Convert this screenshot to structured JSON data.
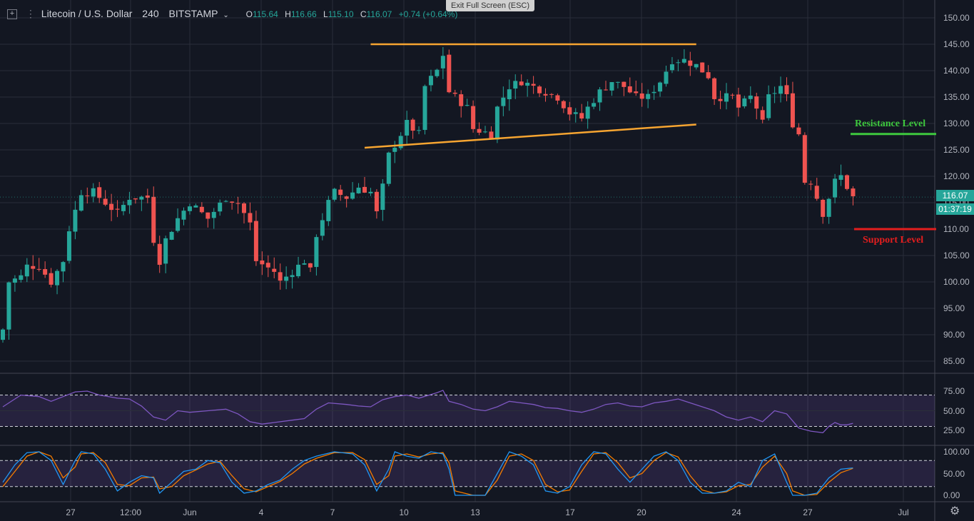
{
  "header": {
    "symbol": "Litecoin / U.S. Dollar",
    "interval": "240",
    "exchange": "BITSTAMP",
    "ohlc": {
      "o_label": "O",
      "o": "115.64",
      "h_label": "H",
      "h": "116.66",
      "l_label": "L",
      "l": "115.10",
      "c_label": "C",
      "c": "116.07",
      "change": "+0.74 (+0.64%)"
    }
  },
  "fullscreen_button": "Exit Full Screen (ESC)",
  "price_axis": {
    "labels": [
      "150.00",
      "145.00",
      "140.00",
      "135.00",
      "130.00",
      "125.00",
      "120.00",
      "115.00",
      "110.00",
      "105.00",
      "100.00",
      "95.00",
      "90.00",
      "85.00"
    ],
    "current_price": "116.07",
    "countdown": "01:37:19"
  },
  "rsi_axis": {
    "labels": [
      "75.00",
      "50.00",
      "25.00"
    ]
  },
  "stoch_axis": {
    "labels": [
      "100.00",
      "50.00",
      "0.00"
    ]
  },
  "time_axis": {
    "labels": [
      "27",
      "12:00",
      "Jun",
      "4",
      "7",
      "10",
      "13",
      "17",
      "20",
      "24",
      "27",
      "Jul"
    ]
  },
  "annotations": {
    "resistance": "Resistance Level",
    "support": "Support Level"
  },
  "colors": {
    "up": "#26a69a",
    "down": "#ef5350",
    "trendline": "#f7a531",
    "resistance": "#3ec93e",
    "support": "#e41e1e",
    "rsi": "#7e57c2"
  },
  "icons": {
    "layout": "square-grid-icon",
    "settings": "gear-icon"
  },
  "chart_data": {
    "type": "candlestick",
    "title": "Litecoin / U.S. Dollar 240 BITSTAMP",
    "ylim": [
      83,
      152
    ],
    "x_ticks": [
      "27",
      "12:00",
      "Jun",
      "4",
      "7",
      "10",
      "13",
      "17",
      "20",
      "24",
      "27",
      "Jul"
    ],
    "close_path": [
      [
        0,
        91
      ],
      [
        1,
        100
      ],
      [
        3,
        101
      ],
      [
        4,
        103
      ],
      [
        6,
        103
      ],
      [
        8,
        100
      ],
      [
        10,
        104
      ],
      [
        11,
        110
      ],
      [
        13,
        117
      ],
      [
        15,
        117
      ],
      [
        17,
        115
      ],
      [
        19,
        113
      ],
      [
        21,
        116
      ],
      [
        24,
        116
      ],
      [
        25,
        108
      ],
      [
        26,
        104
      ],
      [
        27,
        108
      ],
      [
        29,
        112
      ],
      [
        31,
        115
      ],
      [
        34,
        112
      ],
      [
        37,
        116
      ],
      [
        39,
        115
      ],
      [
        41,
        111
      ],
      [
        42,
        104
      ],
      [
        45,
        102
      ],
      [
        46,
        100
      ],
      [
        48,
        102
      ],
      [
        50,
        104
      ],
      [
        51,
        102
      ],
      [
        52,
        109
      ],
      [
        54,
        115
      ],
      [
        55,
        117
      ],
      [
        57,
        116
      ],
      [
        59,
        118
      ],
      [
        61,
        117
      ],
      [
        62,
        113
      ],
      [
        63,
        118
      ],
      [
        64,
        124
      ],
      [
        66,
        128
      ],
      [
        67,
        130
      ],
      [
        69,
        128
      ],
      [
        70,
        137
      ],
      [
        72,
        140
      ],
      [
        73,
        143
      ],
      [
        74,
        136
      ],
      [
        76,
        134
      ],
      [
        77,
        133
      ],
      [
        78,
        129
      ],
      [
        81,
        128
      ],
      [
        82,
        133
      ],
      [
        84,
        137
      ],
      [
        86,
        138
      ],
      [
        88,
        137
      ],
      [
        90,
        136
      ],
      [
        92,
        135
      ],
      [
        94,
        132
      ],
      [
        96,
        131
      ],
      [
        97,
        133
      ],
      [
        99,
        136
      ],
      [
        101,
        138
      ],
      [
        103,
        137
      ],
      [
        105,
        135
      ],
      [
        107,
        135
      ],
      [
        109,
        138
      ],
      [
        111,
        142
      ],
      [
        113,
        142
      ],
      [
        115,
        141
      ],
      [
        117,
        139
      ],
      [
        118,
        135
      ],
      [
        121,
        135
      ],
      [
        122,
        133
      ],
      [
        124,
        135
      ],
      [
        125,
        133
      ],
      [
        126,
        130
      ],
      [
        127,
        135
      ],
      [
        129,
        137
      ],
      [
        130,
        135
      ],
      [
        131,
        130
      ],
      [
        132,
        128
      ],
      [
        133,
        119
      ],
      [
        134,
        119
      ],
      [
        136,
        113
      ],
      [
        137,
        116
      ],
      [
        138,
        119
      ],
      [
        139,
        120
      ],
      [
        140,
        118
      ],
      [
        141,
        116
      ]
    ],
    "rsi_path": [
      [
        0,
        55
      ],
      [
        3,
        70
      ],
      [
        6,
        68
      ],
      [
        8,
        62
      ],
      [
        10,
        68
      ],
      [
        12,
        74
      ],
      [
        14,
        75
      ],
      [
        16,
        70
      ],
      [
        19,
        66
      ],
      [
        21,
        65
      ],
      [
        23,
        56
      ],
      [
        25,
        42
      ],
      [
        27,
        38
      ],
      [
        29,
        50
      ],
      [
        31,
        48
      ],
      [
        34,
        50
      ],
      [
        37,
        52
      ],
      [
        39,
        46
      ],
      [
        41,
        36
      ],
      [
        43,
        33
      ],
      [
        45,
        35
      ],
      [
        48,
        38
      ],
      [
        50,
        40
      ],
      [
        52,
        52
      ],
      [
        54,
        60
      ],
      [
        57,
        58
      ],
      [
        59,
        56
      ],
      [
        61,
        55
      ],
      [
        63,
        64
      ],
      [
        65,
        68
      ],
      [
        67,
        70
      ],
      [
        69,
        66
      ],
      [
        72,
        73
      ],
      [
        73,
        76
      ],
      [
        74,
        62
      ],
      [
        76,
        58
      ],
      [
        78,
        52
      ],
      [
        80,
        50
      ],
      [
        82,
        55
      ],
      [
        84,
        62
      ],
      [
        86,
        60
      ],
      [
        88,
        58
      ],
      [
        90,
        54
      ],
      [
        92,
        53
      ],
      [
        94,
        50
      ],
      [
        96,
        48
      ],
      [
        98,
        52
      ],
      [
        100,
        58
      ],
      [
        102,
        60
      ],
      [
        104,
        56
      ],
      [
        106,
        55
      ],
      [
        108,
        60
      ],
      [
        110,
        62
      ],
      [
        112,
        65
      ],
      [
        114,
        60
      ],
      [
        116,
        55
      ],
      [
        118,
        50
      ],
      [
        120,
        42
      ],
      [
        122,
        38
      ],
      [
        124,
        42
      ],
      [
        126,
        36
      ],
      [
        128,
        50
      ],
      [
        130,
        46
      ],
      [
        132,
        28
      ],
      [
        134,
        24
      ],
      [
        136,
        22
      ],
      [
        137,
        30
      ],
      [
        138,
        35
      ],
      [
        139,
        32
      ],
      [
        140,
        32
      ],
      [
        141,
        34
      ]
    ],
    "rsi_band": [
      30,
      70
    ],
    "stoch_k": [
      [
        0,
        30
      ],
      [
        2,
        70
      ],
      [
        4,
        98
      ],
      [
        6,
        100
      ],
      [
        8,
        80
      ],
      [
        10,
        25
      ],
      [
        12,
        80
      ],
      [
        13,
        100
      ],
      [
        15,
        95
      ],
      [
        17,
        60
      ],
      [
        19,
        10
      ],
      [
        21,
        30
      ],
      [
        23,
        45
      ],
      [
        25,
        40
      ],
      [
        26,
        5
      ],
      [
        28,
        30
      ],
      [
        30,
        55
      ],
      [
        32,
        60
      ],
      [
        34,
        80
      ],
      [
        36,
        75
      ],
      [
        38,
        30
      ],
      [
        40,
        5
      ],
      [
        42,
        10
      ],
      [
        44,
        25
      ],
      [
        46,
        35
      ],
      [
        48,
        60
      ],
      [
        50,
        80
      ],
      [
        52,
        90
      ],
      [
        55,
        100
      ],
      [
        58,
        95
      ],
      [
        60,
        70
      ],
      [
        62,
        10
      ],
      [
        64,
        60
      ],
      [
        65,
        100
      ],
      [
        67,
        90
      ],
      [
        69,
        85
      ],
      [
        71,
        100
      ],
      [
        73,
        95
      ],
      [
        74,
        60
      ],
      [
        75,
        0
      ],
      [
        78,
        0
      ],
      [
        80,
        0
      ],
      [
        82,
        50
      ],
      [
        84,
        100
      ],
      [
        86,
        90
      ],
      [
        88,
        70
      ],
      [
        90,
        10
      ],
      [
        92,
        5
      ],
      [
        94,
        20
      ],
      [
        96,
        70
      ],
      [
        98,
        100
      ],
      [
        100,
        95
      ],
      [
        102,
        60
      ],
      [
        104,
        30
      ],
      [
        106,
        60
      ],
      [
        108,
        90
      ],
      [
        110,
        100
      ],
      [
        112,
        80
      ],
      [
        114,
        30
      ],
      [
        116,
        5
      ],
      [
        118,
        5
      ],
      [
        120,
        10
      ],
      [
        122,
        30
      ],
      [
        124,
        20
      ],
      [
        126,
        80
      ],
      [
        128,
        95
      ],
      [
        130,
        30
      ],
      [
        131,
        0
      ],
      [
        133,
        0
      ],
      [
        135,
        5
      ],
      [
        137,
        40
      ],
      [
        139,
        60
      ],
      [
        141,
        63
      ]
    ],
    "stoch_d": [
      [
        0,
        20
      ],
      [
        2,
        55
      ],
      [
        4,
        90
      ],
      [
        6,
        100
      ],
      [
        8,
        90
      ],
      [
        10,
        40
      ],
      [
        12,
        65
      ],
      [
        13,
        95
      ],
      [
        15,
        98
      ],
      [
        17,
        75
      ],
      [
        19,
        25
      ],
      [
        21,
        22
      ],
      [
        23,
        40
      ],
      [
        25,
        42
      ],
      [
        26,
        15
      ],
      [
        28,
        20
      ],
      [
        30,
        45
      ],
      [
        32,
        58
      ],
      [
        34,
        72
      ],
      [
        36,
        78
      ],
      [
        38,
        45
      ],
      [
        40,
        15
      ],
      [
        42,
        8
      ],
      [
        44,
        20
      ],
      [
        46,
        32
      ],
      [
        48,
        50
      ],
      [
        50,
        72
      ],
      [
        52,
        85
      ],
      [
        55,
        98
      ],
      [
        58,
        98
      ],
      [
        60,
        82
      ],
      [
        62,
        25
      ],
      [
        64,
        45
      ],
      [
        65,
        90
      ],
      [
        67,
        95
      ],
      [
        69,
        88
      ],
      [
        71,
        95
      ],
      [
        73,
        98
      ],
      [
        74,
        75
      ],
      [
        75,
        10
      ],
      [
        78,
        0
      ],
      [
        80,
        0
      ],
      [
        82,
        35
      ],
      [
        84,
        90
      ],
      [
        86,
        95
      ],
      [
        88,
        80
      ],
      [
        90,
        25
      ],
      [
        92,
        8
      ],
      [
        94,
        12
      ],
      [
        96,
        55
      ],
      [
        98,
        95
      ],
      [
        100,
        98
      ],
      [
        102,
        75
      ],
      [
        104,
        40
      ],
      [
        106,
        50
      ],
      [
        108,
        80
      ],
      [
        110,
        98
      ],
      [
        112,
        88
      ],
      [
        114,
        45
      ],
      [
        116,
        12
      ],
      [
        118,
        5
      ],
      [
        120,
        8
      ],
      [
        122,
        22
      ],
      [
        124,
        25
      ],
      [
        126,
        65
      ],
      [
        128,
        90
      ],
      [
        130,
        50
      ],
      [
        131,
        10
      ],
      [
        133,
        0
      ],
      [
        135,
        2
      ],
      [
        137,
        30
      ],
      [
        139,
        52
      ],
      [
        141,
        62
      ]
    ],
    "stoch_band": [
      20,
      80
    ],
    "trendlines": [
      {
        "name": "top",
        "from": [
          61,
          145
        ],
        "to": [
          115,
          145
        ]
      },
      {
        "name": "rising",
        "from": [
          60,
          125.4
        ],
        "to": [
          115,
          129.8
        ]
      }
    ],
    "levels": [
      {
        "name": "Resistance Level",
        "value": 128
      },
      {
        "name": "Support Level",
        "value": 110
      }
    ],
    "last_price": 116.07
  }
}
